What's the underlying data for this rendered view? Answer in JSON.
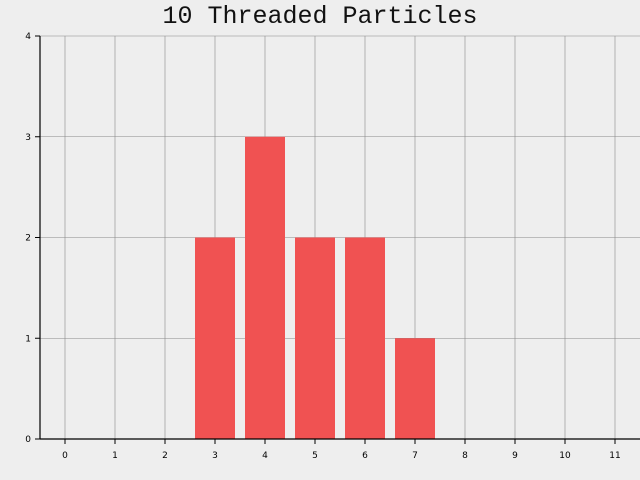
{
  "chart_data": {
    "type": "bar",
    "title": "10 Threaded Particles",
    "xlabel": "",
    "ylabel": "",
    "x_ticks": [
      "0",
      "1",
      "2",
      "3",
      "4",
      "5",
      "6",
      "7",
      "8",
      "9",
      "10",
      "11"
    ],
    "y_ticks": [
      "0",
      "1",
      "2",
      "3",
      "4"
    ],
    "categories": [
      3,
      4,
      5,
      6,
      7
    ],
    "values": [
      2,
      3,
      2,
      2,
      1
    ],
    "xlim": [
      -0.5,
      11.5
    ],
    "ylim": [
      0,
      4
    ],
    "grid": true,
    "legend": "none",
    "colors": {
      "bar": "#f05252",
      "background": "#eeeeee",
      "grid": "#888888",
      "axis": "#000000"
    }
  }
}
